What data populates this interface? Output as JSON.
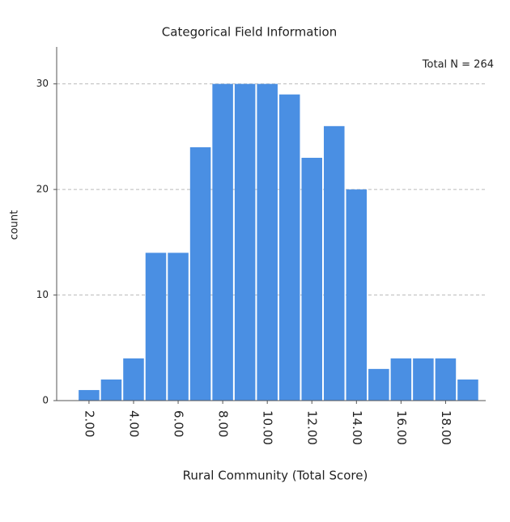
{
  "chart_data": {
    "type": "histogram",
    "title": "Categorical Field Information",
    "xlabel": "Rural Community (Total Score)",
    "ylabel": "count",
    "annotation": "Total N =  264",
    "bins": [
      1.5,
      2.5,
      3.5,
      4.5,
      5.5,
      6.5,
      7.5,
      8.5,
      9.5,
      10.5,
      11.5,
      12.5,
      13.5,
      14.5,
      15.5,
      16.5,
      17.5,
      18.5,
      19.5
    ],
    "values": [
      1,
      2,
      4,
      14,
      14,
      24,
      30,
      30,
      30,
      29,
      23,
      26,
      20,
      3,
      4,
      4,
      4,
      2
    ],
    "color": "#4a8fe3",
    "xlim": [
      0.55,
      19.8
    ],
    "xticks": [
      {
        "value": 2,
        "label": "2.00"
      },
      {
        "value": 4,
        "label": "4.00"
      },
      {
        "value": 6,
        "label": "6.00"
      },
      {
        "value": 8,
        "label": "8.00"
      },
      {
        "value": 10,
        "label": "10.00"
      },
      {
        "value": 12,
        "label": "12.00"
      },
      {
        "value": 14,
        "label": "14.00"
      },
      {
        "value": 16,
        "label": "16.00"
      },
      {
        "value": 18,
        "label": "18.00"
      }
    ],
    "ylim": [
      0,
      33.5
    ],
    "yticks": [
      0,
      10,
      20,
      30
    ],
    "grid": true
  }
}
